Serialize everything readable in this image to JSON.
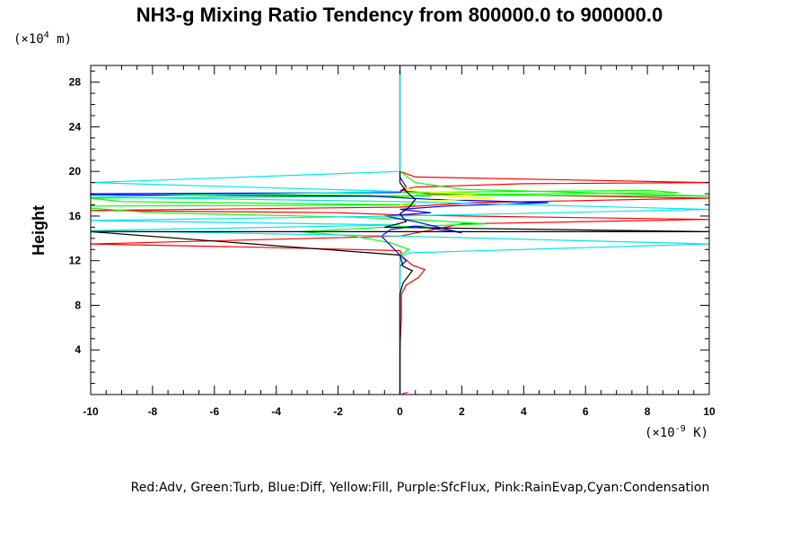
{
  "chart_data": {
    "type": "line",
    "title": "NH3-g Mixing Ratio Tendency from 800000.0 to 900000.0",
    "ylabel": "Height",
    "y_unit": {
      "prefix": "(×10",
      "exp": "4",
      "suffix": " m)"
    },
    "x_unit": {
      "prefix": "(×10",
      "exp": "-9",
      "suffix": " K)"
    },
    "xlim": [
      -10,
      10
    ],
    "ylim": [
      0,
      29.5
    ],
    "x_ticks": [
      -10,
      -8,
      -6,
      -4,
      -2,
      0,
      2,
      4,
      6,
      8,
      10
    ],
    "y_ticks": [
      4,
      8,
      12,
      16,
      20,
      24,
      28
    ],
    "legend_text": "Red:Adv, Green:Turb, Blue:Diff, Yellow:Fill, Purple:SfcFlux, Pink:RainEvap,Cyan:Condensation",
    "grid": false,
    "series": [
      {
        "name": "Adv",
        "color": "#ff0000",
        "points": [
          [
            0,
            0
          ],
          [
            0,
            4
          ],
          [
            0.05,
            7
          ],
          [
            0.05,
            9
          ],
          [
            0.2,
            9.8
          ],
          [
            0.6,
            10.5
          ],
          [
            0.8,
            11.2
          ],
          [
            0.4,
            11.6
          ],
          [
            0.1,
            12.3
          ],
          [
            0,
            12.9
          ],
          [
            -4.5,
            13.2
          ],
          [
            -10,
            13.5
          ],
          [
            -10,
            13.5
          ],
          [
            0,
            14.2
          ],
          [
            2,
            15.3
          ],
          [
            10,
            15.7
          ],
          [
            10,
            15.7
          ],
          [
            2,
            16.0
          ],
          [
            0,
            16.1
          ],
          [
            -2,
            16.3
          ],
          [
            -10,
            16.5
          ],
          [
            -10,
            16.5
          ],
          [
            0,
            16.8
          ],
          [
            2.4,
            17.2
          ],
          [
            10,
            17.6
          ],
          [
            10,
            17.6
          ],
          [
            1,
            18.0
          ],
          [
            0,
            18.3
          ],
          [
            0.5,
            18.6
          ],
          [
            4,
            18.9
          ],
          [
            10,
            19.0
          ],
          [
            10,
            19.0
          ],
          [
            0.5,
            19.5
          ],
          [
            0,
            20
          ],
          [
            0,
            29
          ]
        ]
      },
      {
        "name": "Turb",
        "color": "#00ff00",
        "points": [
          [
            0,
            0
          ],
          [
            0,
            12.5
          ],
          [
            0.3,
            13.0
          ],
          [
            -0.3,
            13.6
          ],
          [
            -1.5,
            14.2
          ],
          [
            -3.2,
            14.6
          ],
          [
            -0.5,
            15.0
          ],
          [
            2.8,
            15.3
          ],
          [
            1,
            15.6
          ],
          [
            -1.5,
            15.9
          ],
          [
            -8,
            16.3
          ],
          [
            -10,
            16.7
          ],
          [
            -10,
            16.9
          ],
          [
            0.5,
            17.0
          ],
          [
            -9,
            17.3
          ],
          [
            -10,
            17.6
          ],
          [
            -10,
            17.6
          ],
          [
            1,
            17.8
          ],
          [
            -8,
            18.0
          ],
          [
            0,
            18.1
          ],
          [
            8,
            18.3
          ],
          [
            9,
            18.1
          ],
          [
            0.5,
            17.9
          ],
          [
            10,
            17.8
          ],
          [
            10,
            17.8
          ],
          [
            2,
            18.4
          ],
          [
            0.5,
            19.0
          ],
          [
            0,
            20
          ],
          [
            0,
            29
          ]
        ]
      },
      {
        "name": "Diff",
        "color": "#0000ff",
        "points": [
          [
            0,
            0
          ],
          [
            0,
            11.5
          ],
          [
            0.2,
            12.0
          ],
          [
            0,
            12.5
          ],
          [
            -0.6,
            14.2
          ],
          [
            -0.3,
            14.8
          ],
          [
            0.5,
            15.1
          ],
          [
            2,
            14.5
          ],
          [
            0.5,
            15.5
          ],
          [
            -0.5,
            16.0
          ],
          [
            1,
            16.3
          ],
          [
            0,
            16.6
          ],
          [
            1.5,
            16.9
          ],
          [
            4.8,
            17.2
          ],
          [
            1,
            17.5
          ],
          [
            -1,
            17.8
          ],
          [
            -10,
            17.9
          ],
          [
            -10,
            18.0
          ],
          [
            0,
            18.1
          ],
          [
            0.2,
            18.6
          ],
          [
            0,
            19.5
          ],
          [
            0,
            29
          ]
        ]
      },
      {
        "name": "Fill",
        "color": "#ffff00",
        "points": [
          [
            0,
            17.0
          ],
          [
            0.5,
            17.3
          ],
          [
            3,
            17.6
          ],
          [
            1.5,
            17.8
          ],
          [
            2.5,
            18.0
          ],
          [
            0.6,
            18.2
          ],
          [
            0.2,
            18.5
          ],
          [
            0,
            18.8
          ]
        ]
      },
      {
        "name": "SfcFlux",
        "color": "#ff00ff",
        "points": [
          [
            0,
            0
          ],
          [
            0.25,
            0.2
          ]
        ]
      },
      {
        "name": "RainEvap",
        "color": "#ffc0cb",
        "points": [
          [
            0,
            0
          ],
          [
            0.1,
            0.15
          ]
        ]
      },
      {
        "name": "Condensation",
        "color": "#00e5ee",
        "points": [
          [
            0,
            0
          ],
          [
            0,
            12.3
          ],
          [
            0.3,
            12.7
          ],
          [
            10,
            13.5
          ],
          [
            10,
            13.5
          ],
          [
            0,
            14.2
          ],
          [
            -10,
            14.7
          ],
          [
            -10,
            14.7
          ],
          [
            0,
            15.2
          ],
          [
            -10,
            15.6
          ],
          [
            -10,
            15.6
          ],
          [
            0,
            16.0
          ],
          [
            10,
            16.6
          ],
          [
            10,
            16.6
          ],
          [
            0,
            17.3
          ],
          [
            -10,
            17.7
          ],
          [
            -10,
            17.7
          ],
          [
            0,
            18.2
          ],
          [
            -10,
            19.0
          ],
          [
            -10,
            19.0
          ],
          [
            0,
            20.0
          ],
          [
            0,
            29.5
          ]
        ]
      },
      {
        "name": "Black",
        "color": "#000000",
        "points": [
          [
            0,
            0
          ],
          [
            0,
            9
          ],
          [
            0.1,
            10
          ],
          [
            0.4,
            11.1
          ],
          [
            0.1,
            11.5
          ],
          [
            0,
            12.5
          ],
          [
            -10,
            14.6
          ],
          [
            10,
            14.6
          ],
          [
            -0.5,
            15.0
          ],
          [
            0.2,
            15.5
          ],
          [
            0,
            16.2
          ],
          [
            0.3,
            16.8
          ],
          [
            0.5,
            17.5
          ],
          [
            0.2,
            18.2
          ],
          [
            0,
            19.0
          ],
          [
            0,
            20
          ]
        ]
      }
    ]
  }
}
